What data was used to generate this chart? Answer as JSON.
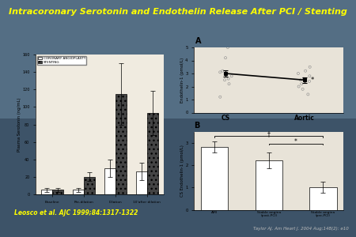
{
  "title": "Intracoronary Serotonin and Endothelin Release After PCI / Stenting",
  "title_color": "#FFFF00",
  "bg_color": "#4a6275",
  "ref_left": "Leosco et al. AJC 1999;84:1317-1322",
  "ref_right": "Taylor AJ. Am Heart J. 2004 Aug;148(2): e10",
  "dark_band_color": "#5a1010",
  "left_chart": {
    "ylabel": "Plasma Serotonin (ng/mL)",
    "ylim": [
      0,
      160
    ],
    "yticks": [
      0,
      20,
      40,
      60,
      80,
      100,
      120,
      140,
      160
    ],
    "categories": [
      "Baseline",
      "Pre-dilation",
      "Dilation",
      "10'after dilation"
    ],
    "angioplasty_values": [
      5,
      5,
      30,
      26
    ],
    "angioplasty_errors": [
      2,
      2,
      10,
      10
    ],
    "stenting_values": [
      5,
      20,
      115,
      93
    ],
    "stenting_errors": [
      2,
      5,
      35,
      25
    ],
    "chart_bg": "#f0ebe0",
    "legend_labels": [
      "CORONARY ANGIOPLASTY",
      "STENTING"
    ]
  },
  "chart_A": {
    "ylabel": "Endothelin-1 (pmol/L)",
    "ylim": [
      0,
      5
    ],
    "yticks": [
      0,
      1,
      2,
      3,
      4,
      5
    ],
    "x_labels": [
      "CS",
      "Aortic"
    ],
    "mean_cs": 3.0,
    "mean_aortic": 2.5,
    "err_cs": 0.25,
    "err_aortic": 0.2,
    "scatter_cs": [
      1.2,
      2.2,
      2.5,
      2.6,
      2.8,
      2.9,
      3.0,
      3.1,
      3.2,
      4.2,
      5.0
    ],
    "scatter_aortic": [
      1.4,
      1.8,
      2.0,
      2.2,
      2.4,
      2.5,
      2.6,
      2.8,
      3.0,
      3.2,
      3.5
    ],
    "chart_bg": "#e8e3d8",
    "significance": "*"
  },
  "chart_B": {
    "ylabel": "CS Endothelin-1 (pmol/L)",
    "ylim": [
      0,
      3.5
    ],
    "yticks": [
      0,
      1,
      2,
      3
    ],
    "categories": [
      "AMI",
      "Stable angina\n(post-PCI)",
      "Stable angina\n(pre-PCI)"
    ],
    "values": [
      2.8,
      2.2,
      1.0
    ],
    "errors": [
      0.25,
      0.35,
      0.25
    ],
    "chart_bg": "#e8e3d8",
    "sig1": "†",
    "sig2": "*"
  }
}
